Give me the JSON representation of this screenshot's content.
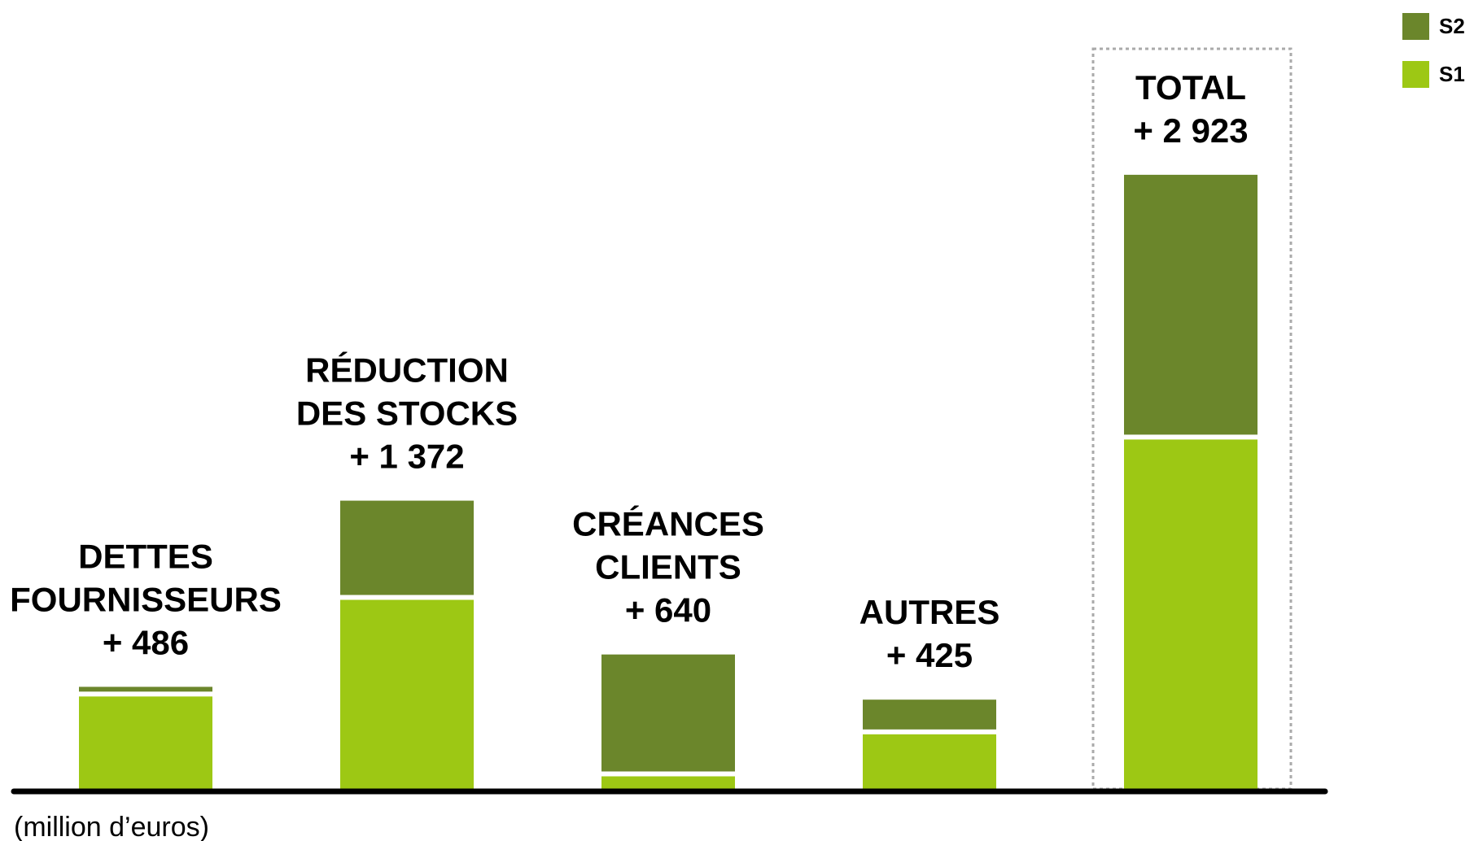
{
  "chart_data": {
    "type": "stacked_bar",
    "categories": [
      "DETTES\nFOURNISSEURS",
      "RÉDUCTION\nDES STOCKS",
      "CRÉANCES\nCLIENTS",
      "AUTRES",
      "TOTAL"
    ],
    "totals": [
      486,
      1372,
      640,
      425,
      2923
    ],
    "value_labels": [
      "+ 486",
      "+ 1 372",
      "+ 640",
      "+ 425",
      "+ 2 923"
    ],
    "series": [
      {
        "name": "S1",
        "color": "#9dc814",
        "values": [
          440,
          900,
          60,
          260,
          1663
        ]
      },
      {
        "name": "S2",
        "color": "#6b862b",
        "values": [
          46,
          472,
          580,
          165,
          1260
        ]
      }
    ],
    "ylim": [
      0,
      3000
    ],
    "unit_note": "(million d’euros)"
  }
}
